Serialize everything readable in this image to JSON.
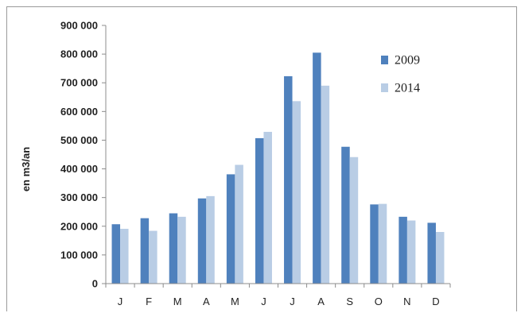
{
  "chart_data": {
    "type": "bar",
    "categories": [
      "J",
      "F",
      "M",
      "A",
      "M",
      "J",
      "J",
      "A",
      "S",
      "O",
      "N",
      "D"
    ],
    "series": [
      {
        "name": "2009",
        "color": "#4f81bd",
        "values": [
          207000,
          228000,
          245000,
          297000,
          381000,
          507000,
          723000,
          805000,
          477000,
          276000,
          233000,
          212000
        ]
      },
      {
        "name": "2014",
        "color": "#b9cde5",
        "values": [
          191000,
          184000,
          233000,
          305000,
          414000,
          529000,
          636000,
          690000,
          441000,
          278000,
          220000,
          180000
        ]
      }
    ],
    "yticks": [
      "0",
      "100 000",
      "200 000",
      "300 000",
      "400 000",
      "500 000",
      "600 000",
      "700 000",
      "800 000",
      "900 000"
    ],
    "ylim": [
      0,
      900000
    ],
    "ylabel": "en m3/an",
    "xlabel": "",
    "title": "",
    "grid": false,
    "legend_position": "top-right"
  }
}
